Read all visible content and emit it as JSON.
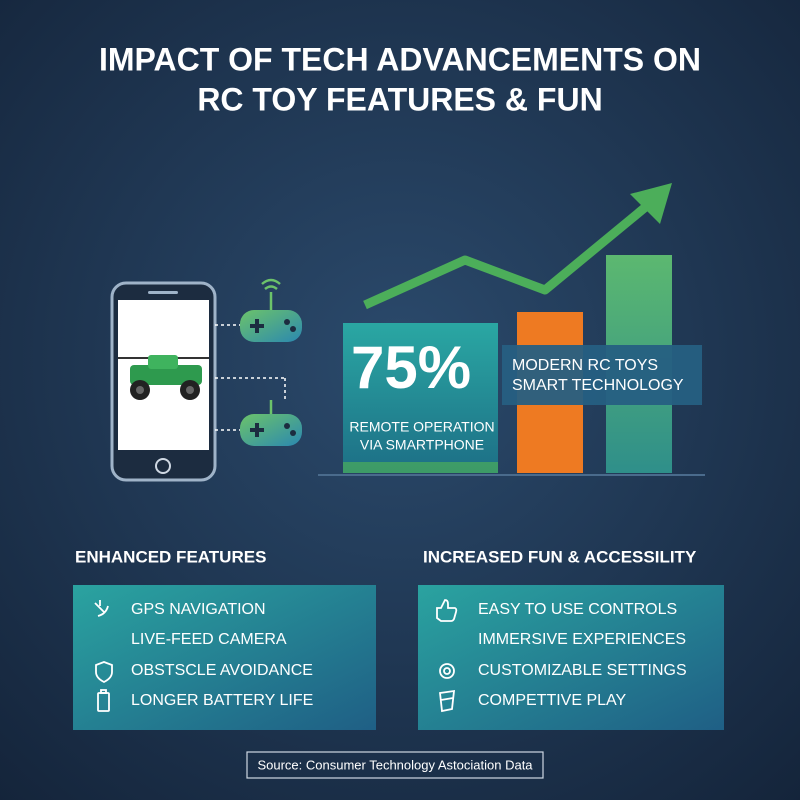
{
  "header": {
    "title_lines": [
      "IMPACT OF TECH ADVANCEMENTS ON",
      "RC TOY FEATURES & FUN"
    ]
  },
  "stat": {
    "value": "75%",
    "caption_lines": [
      "REMOTE OPERATION",
      "VIA SMARTPHONE"
    ],
    "callout_lines": [
      "MODERN RC TOYS",
      "SMART TECHNOLOGY"
    ]
  },
  "features": {
    "title": "ENHANCED FEATURES",
    "items": [
      "GPS NAVIGATION",
      "LIVE-FEED CAMERA",
      "OBSTSCLE AVOIDANCE",
      "LONGER BATTERY LIFE"
    ]
  },
  "fun": {
    "title": "INCREASED FUN & ACCESSILITY",
    "items": [
      "EASY TO USE CONTROLS",
      "IMMERSIVE EXPERIENCES",
      "CUSTOMIZABLE SETTINGS",
      "COMPETTIVE PLAY"
    ]
  },
  "source": "Source: Consumer Technology Astociation Data"
}
